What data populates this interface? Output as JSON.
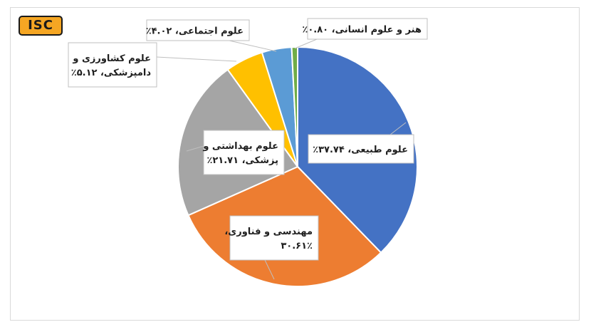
{
  "logo": {
    "text": "ISC"
  },
  "chart_data": {
    "type": "pie",
    "start_angle_deg": 0,
    "direction": "clockwise",
    "slices": [
      {
        "label": "علوم طبیعی",
        "value": 37.74,
        "display": "علوم طبیعی، ۳۷.۷۴٪",
        "lines": [
          "علوم طبیعی، ۳۷.۷۴٪"
        ],
        "color": "#4472c4"
      },
      {
        "label": "مهندسی و فناوری",
        "value": 30.61,
        "display": "مهندسی و فناوری، ۳۰.۶۱٪",
        "lines": [
          "مهندسی و فناوری،",
          "۳۰.۶۱٪"
        ],
        "color": "#ed7d31"
      },
      {
        "label": "علوم بهداشتی و پزشکی",
        "value": 21.71,
        "display": "علوم بهداشتی و پزشکی، ۲۱.۷۱٪",
        "lines": [
          "علوم بهداشتی و",
          "پزشکی، ۲۱.۷۱٪"
        ],
        "color": "#a5a5a5"
      },
      {
        "label": "علوم کشاورزی و دامپزشکی",
        "value": 5.12,
        "display": "علوم کشاورزی و دامپزشکی، ۵.۱۲٪",
        "lines": [
          "علوم کشاورزی و",
          "دامپزشکی، ۵.۱۲٪"
        ],
        "color": "#ffc000"
      },
      {
        "label": "علوم اجتماعی",
        "value": 4.02,
        "display": "علوم اجتماعی، ۴.۰۲٪",
        "lines": [
          "علوم اجتماعی، ۴.۰۲٪"
        ],
        "color": "#5b9bd5"
      },
      {
        "label": "هنر و علوم انسانی",
        "value": 0.8,
        "display": "هنر و علوم انسانی، ۰.۸۰٪",
        "lines": [
          "هنر و علوم انسانی، ۰.۸۰٪"
        ],
        "color": "#70ad47"
      }
    ]
  }
}
